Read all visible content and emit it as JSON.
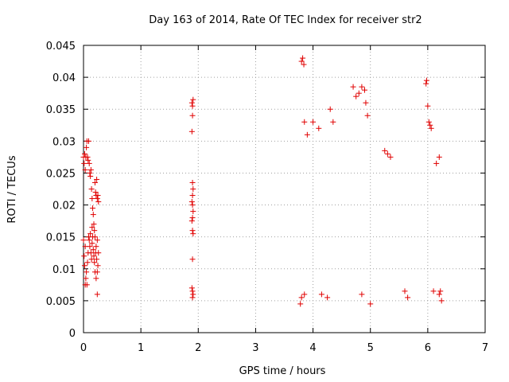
{
  "chart_data": {
    "type": "scatter",
    "title": "Day 163 of 2014, Rate Of TEC Index for receiver str2",
    "xlabel": "GPS time / hours",
    "ylabel": "ROTI / TECUs",
    "xlim": [
      0,
      7
    ],
    "ylim": [
      0,
      0.045
    ],
    "xticks": [
      0,
      1,
      2,
      3,
      4,
      5,
      6,
      7
    ],
    "yticks": [
      0,
      0.005,
      0.01,
      0.015,
      0.02,
      0.025,
      0.03,
      0.035,
      0.04,
      0.045
    ],
    "xtick_labels": [
      "0",
      "1",
      "2",
      "3",
      "4",
      "5",
      "6",
      "7"
    ],
    "ytick_labels": [
      "0",
      "0.005",
      "0.01",
      "0.015",
      "0.02",
      "0.025",
      "0.03",
      "0.035",
      "0.04",
      "0.045"
    ],
    "grid": true,
    "marker": "plus",
    "color": "#e00000",
    "series": [
      {
        "name": "ROTI",
        "points": [
          [
            0.0,
            0.0275
          ],
          [
            0.01,
            0.0265
          ],
          [
            0.02,
            0.028
          ],
          [
            0.03,
            0.0255
          ],
          [
            0.04,
            0.0275
          ],
          [
            0.05,
            0.029
          ],
          [
            0.06,
            0.03
          ],
          [
            0.07,
            0.0275
          ],
          [
            0.08,
            0.027
          ],
          [
            0.09,
            0.03
          ],
          [
            0.0,
            0.0145
          ],
          [
            0.01,
            0.012
          ],
          [
            0.02,
            0.0105
          ],
          [
            0.03,
            0.0135
          ],
          [
            0.04,
            0.0085
          ],
          [
            0.05,
            0.0095
          ],
          [
            0.06,
            0.0075
          ],
          [
            0.07,
            0.011
          ],
          [
            0.08,
            0.0125
          ],
          [
            0.09,
            0.015
          ],
          [
            0.1,
            0.0265
          ],
          [
            0.11,
            0.025
          ],
          [
            0.12,
            0.0245
          ],
          [
            0.13,
            0.0255
          ],
          [
            0.14,
            0.0225
          ],
          [
            0.15,
            0.021
          ],
          [
            0.16,
            0.0195
          ],
          [
            0.17,
            0.0185
          ],
          [
            0.18,
            0.017
          ],
          [
            0.19,
            0.016
          ],
          [
            0.1,
            0.0145
          ],
          [
            0.11,
            0.0135
          ],
          [
            0.12,
            0.0155
          ],
          [
            0.13,
            0.0125
          ],
          [
            0.14,
            0.0115
          ],
          [
            0.15,
            0.014
          ],
          [
            0.16,
            0.015
          ],
          [
            0.17,
            0.013
          ],
          [
            0.18,
            0.012
          ],
          [
            0.19,
            0.011
          ],
          [
            0.2,
            0.0235
          ],
          [
            0.21,
            0.022
          ],
          [
            0.22,
            0.0215
          ],
          [
            0.23,
            0.024
          ],
          [
            0.24,
            0.021
          ],
          [
            0.25,
            0.0215
          ],
          [
            0.26,
            0.0205
          ],
          [
            0.2,
            0.0095
          ],
          [
            0.22,
            0.0085
          ],
          [
            0.24,
            0.0095
          ],
          [
            0.2,
            0.015
          ],
          [
            0.22,
            0.0135
          ],
          [
            0.24,
            0.0145
          ],
          [
            0.26,
            0.0125
          ],
          [
            0.23,
            0.0115
          ],
          [
            0.25,
            0.0105
          ],
          [
            0.21,
            0.0125
          ],
          [
            0.24,
            0.006
          ],
          [
            0.03,
            0.0075
          ],
          [
            0.15,
            0.0165
          ],
          [
            1.89,
            0.036
          ],
          [
            1.9,
            0.0355
          ],
          [
            1.91,
            0.0365
          ],
          [
            1.9,
            0.034
          ],
          [
            1.89,
            0.0315
          ],
          [
            1.9,
            0.0235
          ],
          [
            1.91,
            0.0225
          ],
          [
            1.9,
            0.0215
          ],
          [
            1.89,
            0.0205
          ],
          [
            1.9,
            0.02
          ],
          [
            1.91,
            0.019
          ],
          [
            1.9,
            0.018
          ],
          [
            1.89,
            0.0175
          ],
          [
            1.9,
            0.016
          ],
          [
            1.91,
            0.0155
          ],
          [
            1.9,
            0.0115
          ],
          [
            1.89,
            0.007
          ],
          [
            1.9,
            0.0065
          ],
          [
            1.91,
            0.006
          ],
          [
            1.9,
            0.0055
          ],
          [
            3.8,
            0.0425
          ],
          [
            3.82,
            0.043
          ],
          [
            3.84,
            0.042
          ],
          [
            3.85,
            0.033
          ],
          [
            3.9,
            0.031
          ],
          [
            4.0,
            0.033
          ],
          [
            4.1,
            0.032
          ],
          [
            4.3,
            0.035
          ],
          [
            4.35,
            0.033
          ],
          [
            4.7,
            0.0385
          ],
          [
            4.75,
            0.037
          ],
          [
            4.8,
            0.0375
          ],
          [
            4.85,
            0.0385
          ],
          [
            4.9,
            0.038
          ],
          [
            4.92,
            0.036
          ],
          [
            4.95,
            0.034
          ],
          [
            5.25,
            0.0285
          ],
          [
            5.3,
            0.028
          ],
          [
            5.35,
            0.0275
          ],
          [
            5.97,
            0.039
          ],
          [
            5.98,
            0.0395
          ],
          [
            6.0,
            0.0355
          ],
          [
            6.02,
            0.033
          ],
          [
            6.04,
            0.0325
          ],
          [
            6.06,
            0.032
          ],
          [
            6.2,
            0.0275
          ],
          [
            6.15,
            0.0265
          ],
          [
            3.78,
            0.0045
          ],
          [
            3.8,
            0.0055
          ],
          [
            3.85,
            0.006
          ],
          [
            4.15,
            0.006
          ],
          [
            4.25,
            0.0055
          ],
          [
            4.85,
            0.006
          ],
          [
            5.0,
            0.0045
          ],
          [
            5.6,
            0.0065
          ],
          [
            6.2,
            0.006
          ],
          [
            6.22,
            0.0065
          ],
          [
            6.24,
            0.005
          ],
          [
            6.1,
            0.0065
          ],
          [
            5.65,
            0.0055
          ]
        ]
      }
    ]
  }
}
